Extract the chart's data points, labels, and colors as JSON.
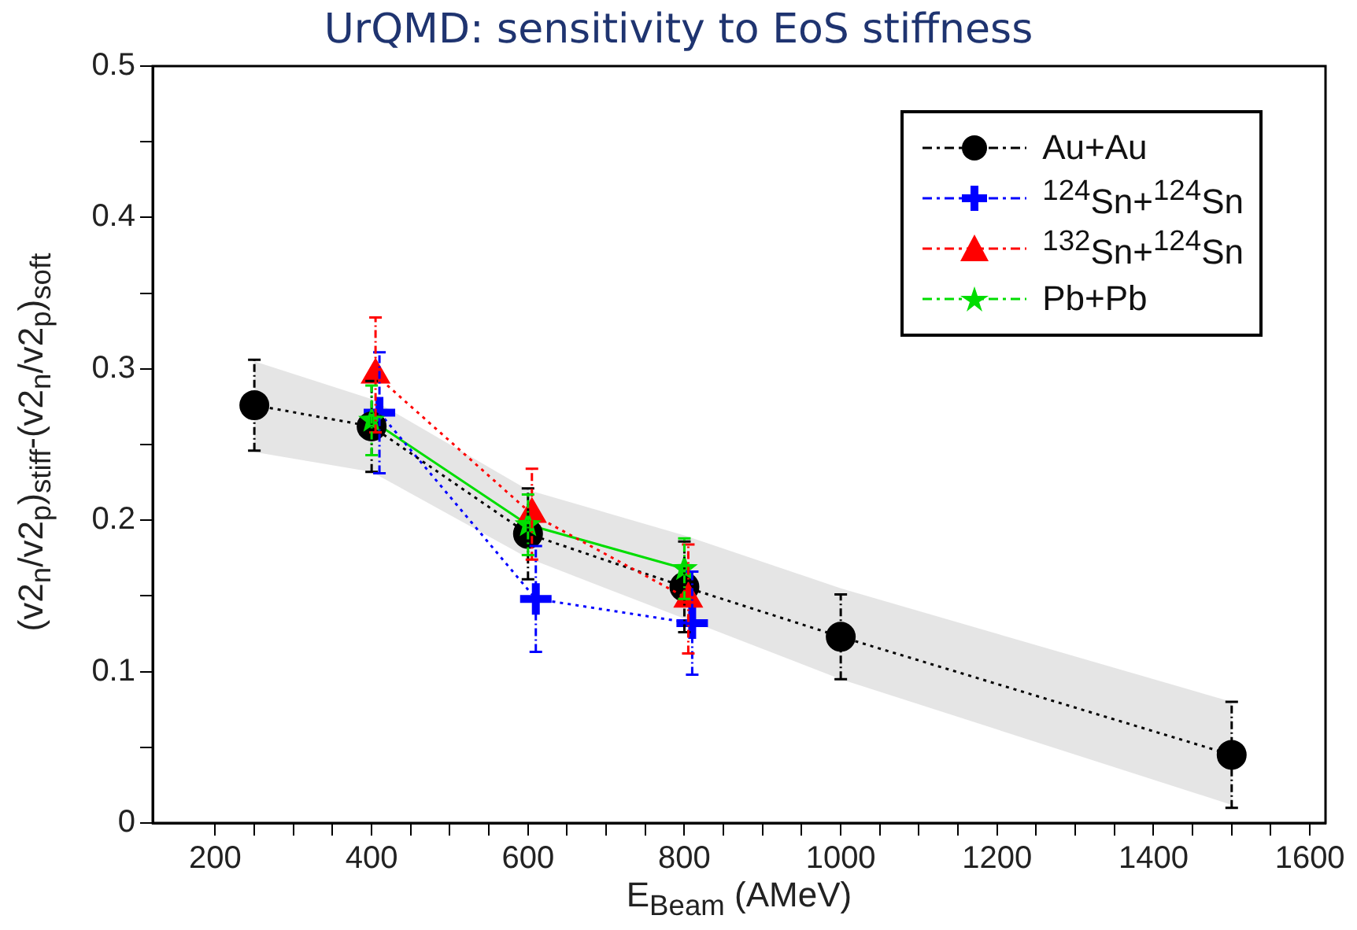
{
  "chart_data": {
    "type": "line",
    "title": "UrQMD: sensitivity to EoS stiffness",
    "xlabel": "E$_{Beam}$ (AMeV)",
    "ylabel": "(v2$_{n}$/v2$_{p}$)$_{stiff}$-(v2$_{n}$/v2$_{p}$)$_{soft}$",
    "xlim": [
      120,
      1620
    ],
    "ylim": [
      0,
      0.5
    ],
    "xticks": [
      200,
      {
        "value": 250,
        "label": null
      },
      {
        "value": 300,
        "label": null
      },
      {
        "value": 350,
        "label": null
      },
      400,
      {
        "value": 450,
        "label": null
      },
      {
        "value": 500,
        "label": null
      },
      {
        "value": 550,
        "label": null
      },
      600,
      {
        "value": 650,
        "label": null
      },
      {
        "value": 700,
        "label": null
      },
      {
        "value": 750,
        "label": null
      },
      800,
      {
        "value": 850,
        "label": null
      },
      {
        "value": 900,
        "label": null
      },
      {
        "value": 950,
        "label": null
      },
      1000,
      {
        "value": 1050,
        "label": null
      },
      {
        "value": 1100,
        "label": null
      },
      {
        "value": 1150,
        "label": null
      },
      1200,
      {
        "value": 1250,
        "label": null
      },
      {
        "value": 1300,
        "label": null
      },
      {
        "value": 1350,
        "label": null
      },
      1400,
      {
        "value": 1450,
        "label": null
      },
      {
        "value": 1500,
        "label": null
      },
      {
        "value": 1550,
        "label": null
      },
      1600
    ],
    "yticks": [
      0,
      {
        "value": 0.05,
        "label": null
      },
      0.1,
      {
        "value": 0.15,
        "label": null
      },
      0.2,
      {
        "value": 0.25,
        "label": null
      },
      0.3,
      {
        "value": 0.35,
        "label": null
      },
      0.4,
      {
        "value": 0.45,
        "label": null
      },
      0.5
    ],
    "grid": false,
    "legend": "top right",
    "series": [
      {
        "name": "Au+Au",
        "color": "#000000",
        "marker": "circle",
        "line_style": "dotted",
        "x": [
          250,
          400,
          600,
          800,
          1000,
          1500
        ],
        "values": [
          0.276,
          0.262,
          0.191,
          0.156,
          0.123,
          0.045
        ],
        "errors": [
          0.03,
          0.03,
          0.03,
          0.03,
          0.028,
          0.035
        ],
        "lower": [
          0.245,
          0.232,
          0.175,
          0.135,
          0.095,
          0.012
        ],
        "upper": [
          0.305,
          0.28,
          0.22,
          0.19,
          0.155,
          0.08
        ]
      },
      {
        "name": "$^{124}$Sn+$^{124}$Sn",
        "color": "#0000ff",
        "marker": "cross",
        "line_style": "dotted",
        "x": [
          410,
          610,
          810
        ],
        "values": [
          0.271,
          0.148,
          0.132
        ],
        "errors": [
          0.04,
          0.035,
          0.034
        ]
      },
      {
        "name": "$^{132}$Sn+$^{124}$Sn",
        "color": "#ff0000",
        "marker": "triangle",
        "line_style": "dotted",
        "x": [
          405,
          605,
          805
        ],
        "values": [
          0.296,
          0.204,
          0.148
        ],
        "errors": [
          0.038,
          0.03,
          0.036
        ]
      },
      {
        "name": "Pb+Pb",
        "color": "#00dd00",
        "marker": "star",
        "line_style": "solid",
        "x": [
          400,
          600,
          800
        ],
        "values": [
          0.266,
          0.197,
          0.168
        ],
        "errors": [
          0.023,
          0.02,
          0.02
        ]
      }
    ]
  }
}
